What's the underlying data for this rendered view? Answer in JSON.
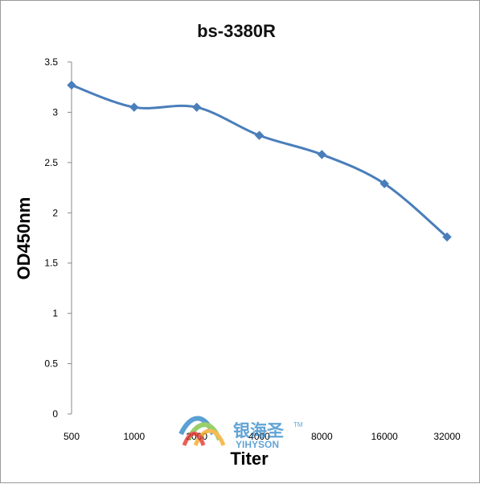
{
  "chart_data": {
    "type": "line",
    "title": "bs-3380R",
    "xlabel": "Titer",
    "ylabel": "OD450nm",
    "categories": [
      "500",
      "1000",
      "2000",
      "4000",
      "8000",
      "16000",
      "32000"
    ],
    "series": [
      {
        "values": [
          3.27,
          3.05,
          3.05,
          2.77,
          2.58,
          2.29,
          1.76
        ]
      }
    ],
    "ylim": [
      0,
      3.5
    ],
    "yticks": [
      "0",
      "0.5",
      "1",
      "1.5",
      "2",
      "2.5",
      "3",
      "3.5"
    ],
    "grid": false,
    "legend": "none",
    "marker": "diamond",
    "series_color": "#4a7ebb"
  },
  "watermark": {
    "brand_cn": "银海圣",
    "brand_en": "YIHYSON",
    "tm": "TM",
    "colors": [
      "#2e86c8",
      "#7cc242",
      "#e6332a",
      "#f7a823"
    ]
  }
}
